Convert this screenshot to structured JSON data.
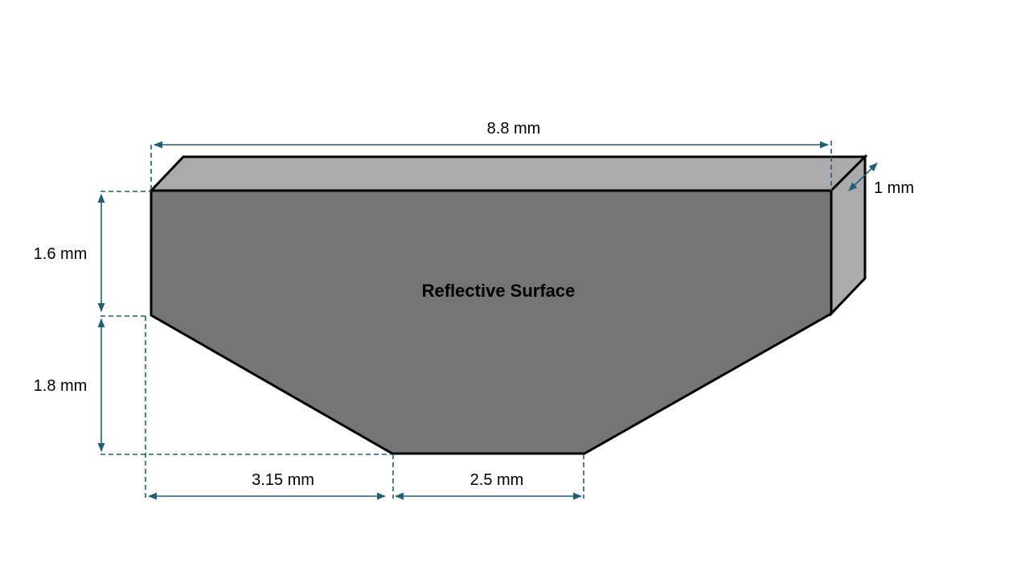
{
  "diagram": {
    "surface_label": "Reflective Surface",
    "dimensions": {
      "total_width": "8.8 mm",
      "depth": "1 mm",
      "upper_height": "1.6 mm",
      "lower_height": "1.8 mm",
      "bevel_width": "3.15 mm",
      "base_width": "2.5 mm"
    },
    "colors": {
      "front_face": "#757575",
      "top_face": "#ababab",
      "side_face": "#ababab",
      "dimension_lines": "#1f5f7a"
    }
  }
}
